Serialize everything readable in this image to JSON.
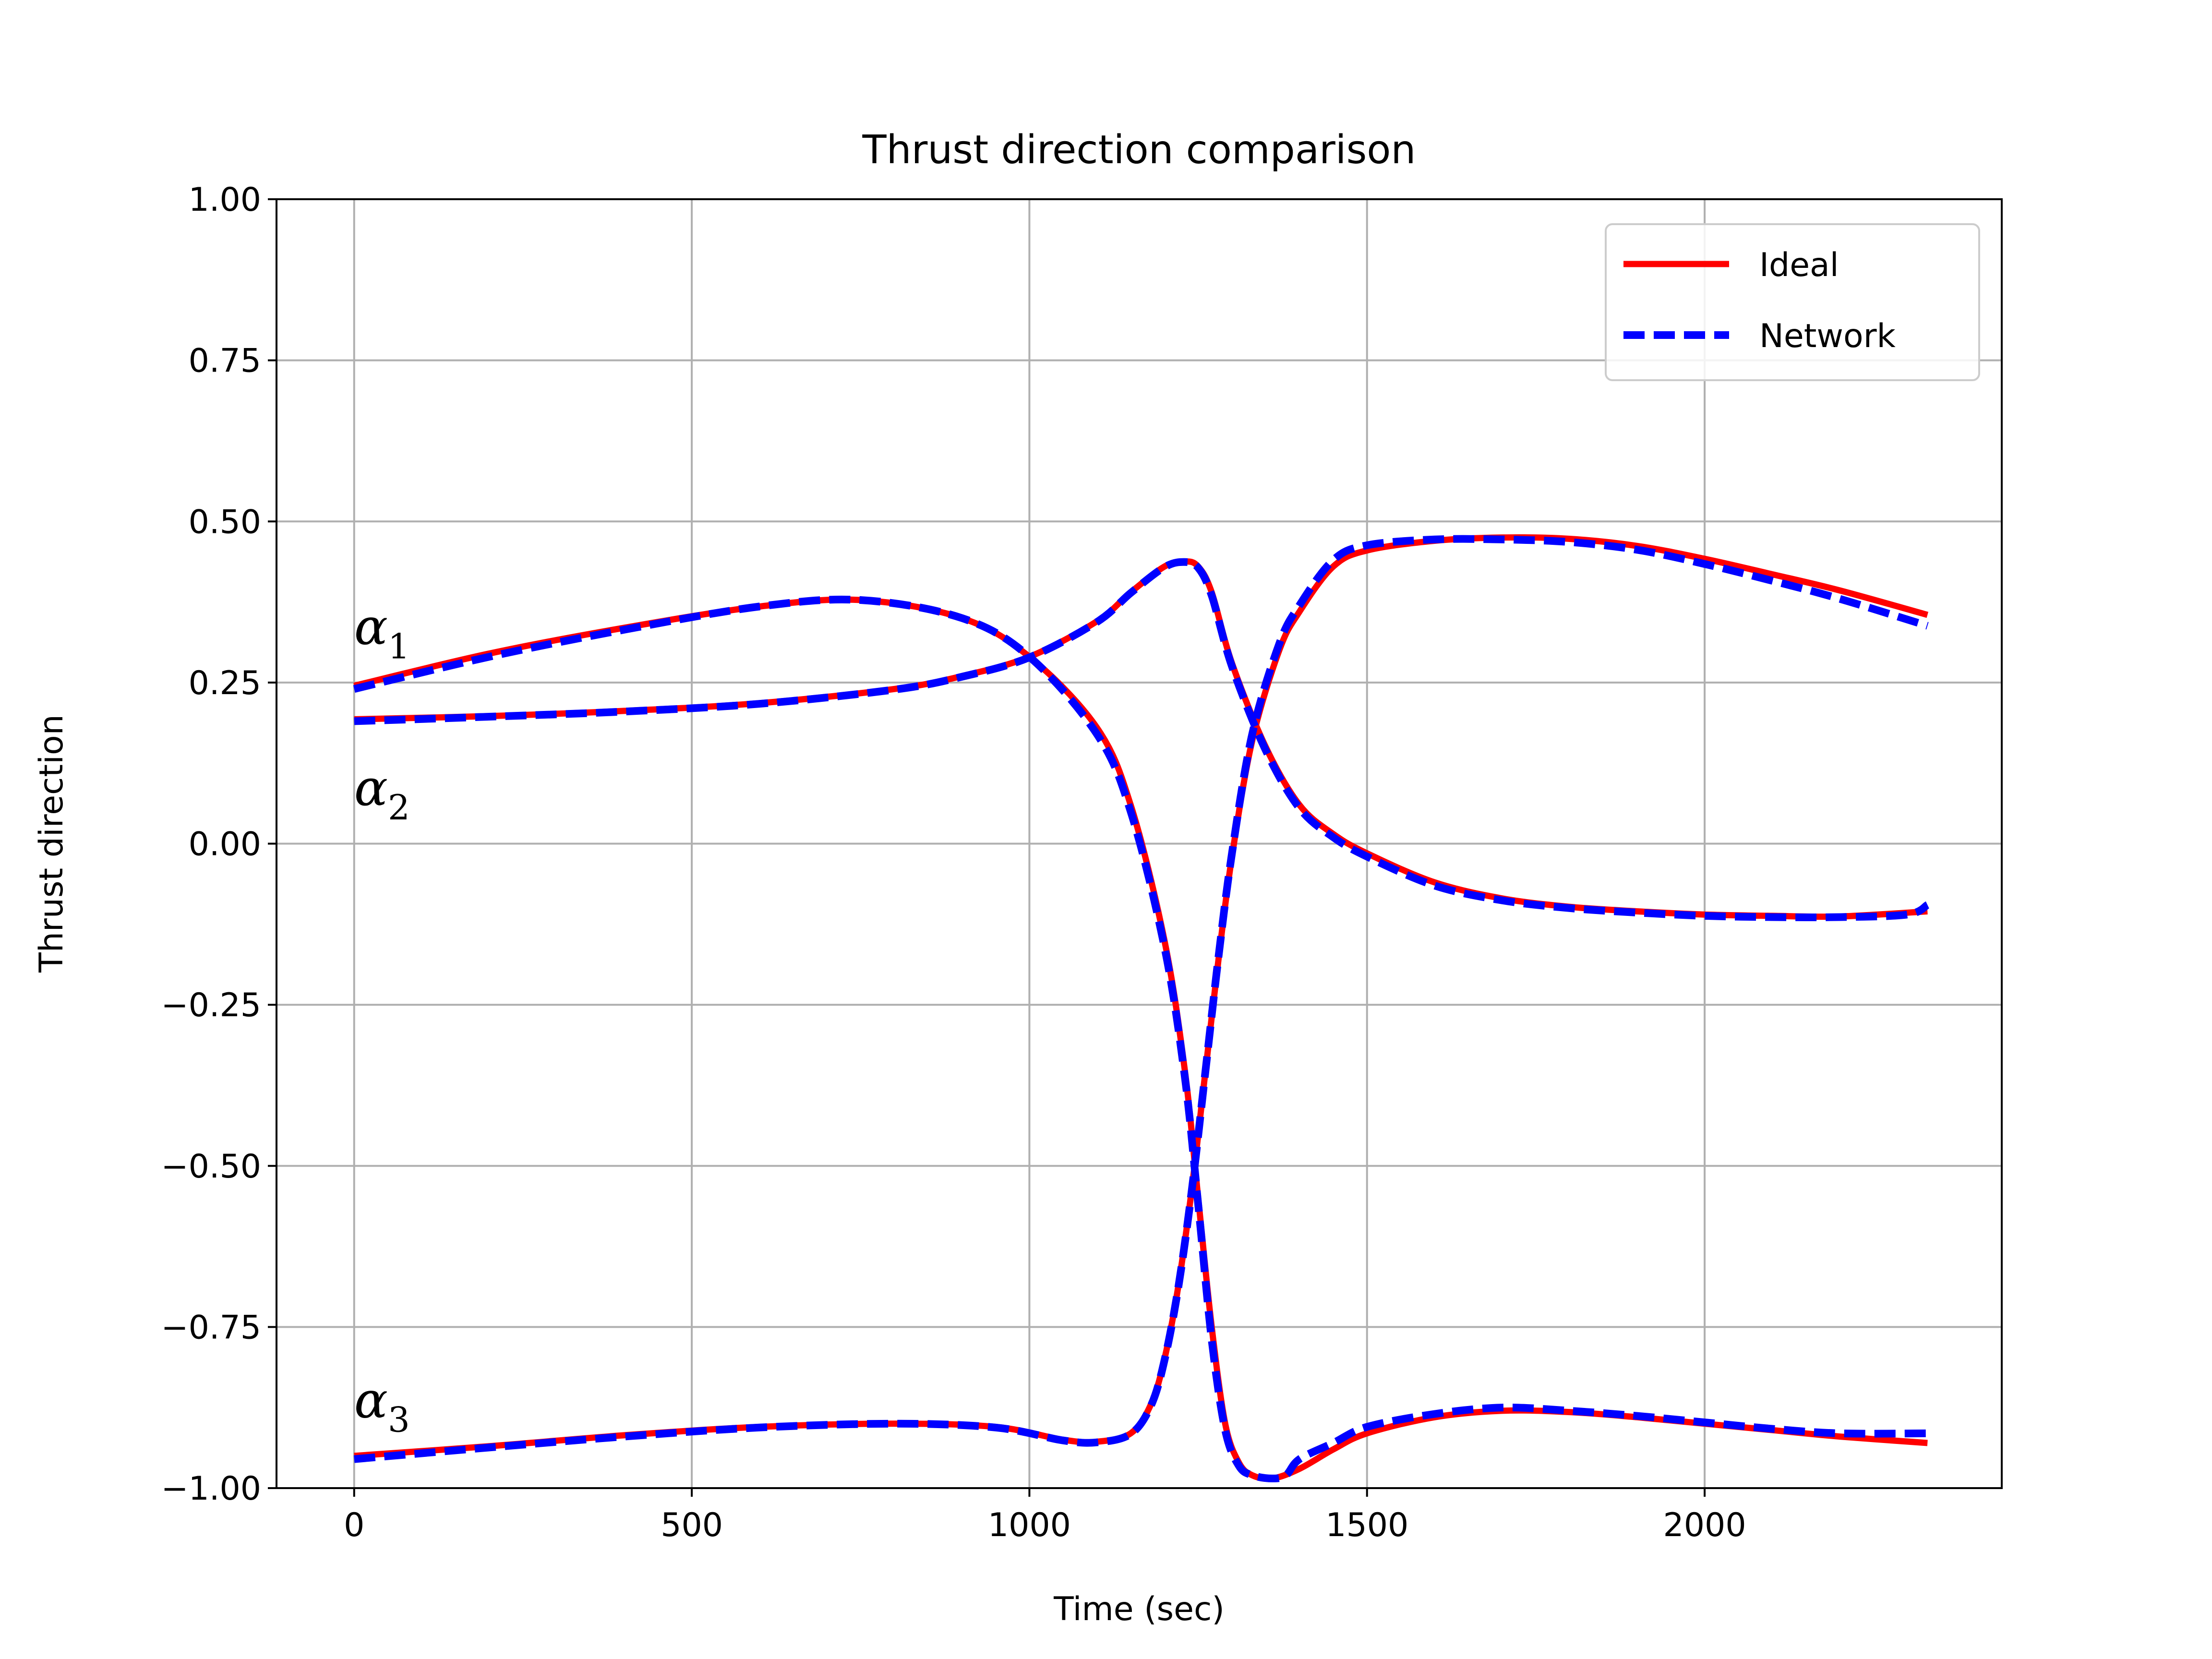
{
  "chart_data": {
    "type": "line",
    "title": "Thrust direction comparison",
    "xlabel": "Time (sec)",
    "ylabel": "Thrust direction",
    "xlim": [
      -115,
      2440
    ],
    "ylim": [
      -1.0,
      1.0
    ],
    "xticks": [
      0,
      500,
      1000,
      1500,
      2000
    ],
    "xtick_labels": [
      "0",
      "500",
      "1000",
      "1500",
      "2000"
    ],
    "yticks": [
      -1.0,
      -0.75,
      -0.5,
      -0.25,
      0.0,
      0.25,
      0.5,
      0.75,
      1.0
    ],
    "ytick_labels": [
      "−1.00",
      "−0.75",
      "−0.50",
      "−0.25",
      "0.00",
      "0.25",
      "0.50",
      "0.75",
      "1.00"
    ],
    "grid": true,
    "legend_position": "top-right",
    "legend": [
      {
        "label": "Ideal",
        "color": "#ff0000",
        "style": "solid"
      },
      {
        "label": "Network",
        "color": "#0000ff",
        "style": "dashed"
      }
    ],
    "annotations": [
      {
        "symbol": "α",
        "subscript": "1",
        "x": 0,
        "y": 0.31
      },
      {
        "symbol": "α",
        "subscript": "2",
        "x": 0,
        "y": 0.06
      },
      {
        "symbol": "α",
        "subscript": "3",
        "x": 0,
        "y": -0.89
      }
    ],
    "series": [
      {
        "curve": "alpha1",
        "line": "Ideal",
        "color": "#ff0000",
        "style": "solid",
        "x": [
          0,
          200,
          400,
          600,
          750,
          900,
          1000,
          1100,
          1150,
          1200,
          1230,
          1250,
          1270,
          1290,
          1310,
          1330,
          1360,
          1400,
          1450,
          1500,
          1600,
          1700,
          1800,
          1900,
          2000,
          2100,
          2200,
          2330
        ],
        "y": [
          0.245,
          0.295,
          0.335,
          0.368,
          0.378,
          0.35,
          0.29,
          0.18,
          0.06,
          -0.15,
          -0.35,
          -0.55,
          -0.75,
          -0.9,
          -0.96,
          -0.98,
          -0.985,
          -0.97,
          -0.94,
          -0.915,
          -0.89,
          -0.88,
          -0.882,
          -0.89,
          -0.9,
          -0.91,
          -0.92,
          -0.93
        ]
      },
      {
        "curve": "alpha1",
        "line": "Network",
        "color": "#0000ff",
        "style": "dashed",
        "x": [
          0,
          200,
          400,
          600,
          750,
          900,
          1000,
          1100,
          1150,
          1200,
          1230,
          1250,
          1270,
          1290,
          1310,
          1330,
          1360,
          1380,
          1400,
          1450,
          1500,
          1600,
          1700,
          1800,
          1900,
          2000,
          2100,
          2200,
          2330
        ],
        "y": [
          0.24,
          0.29,
          0.332,
          0.368,
          0.378,
          0.35,
          0.29,
          0.17,
          0.05,
          -0.16,
          -0.36,
          -0.56,
          -0.77,
          -0.91,
          -0.965,
          -0.98,
          -0.985,
          -0.98,
          -0.955,
          -0.93,
          -0.905,
          -0.885,
          -0.875,
          -0.88,
          -0.888,
          -0.898,
          -0.908,
          -0.915,
          -0.915
        ]
      },
      {
        "curve": "alpha2",
        "line": "Ideal",
        "color": "#ff0000",
        "style": "solid",
        "x": [
          0,
          200,
          400,
          600,
          800,
          900,
          1000,
          1100,
          1150,
          1200,
          1230,
          1250,
          1270,
          1300,
          1350,
          1400,
          1450,
          1500,
          1600,
          1700,
          1800,
          1900,
          2000,
          2100,
          2200,
          2330
        ],
        "y": [
          0.193,
          0.198,
          0.206,
          0.218,
          0.24,
          0.26,
          0.29,
          0.345,
          0.39,
          0.43,
          0.438,
          0.43,
          0.39,
          0.28,
          0.15,
          0.06,
          0.015,
          -0.015,
          -0.06,
          -0.085,
          -0.098,
          -0.105,
          -0.11,
          -0.112,
          -0.113,
          -0.105
        ]
      },
      {
        "curve": "alpha2",
        "line": "Network",
        "color": "#0000ff",
        "style": "dashed",
        "x": [
          0,
          200,
          400,
          600,
          800,
          900,
          1000,
          1100,
          1150,
          1200,
          1230,
          1250,
          1270,
          1300,
          1350,
          1400,
          1450,
          1500,
          1600,
          1700,
          1800,
          1900,
          2000,
          2100,
          2200,
          2300,
          2330
        ],
        "y": [
          0.19,
          0.197,
          0.205,
          0.217,
          0.239,
          0.259,
          0.289,
          0.344,
          0.389,
          0.429,
          0.437,
          0.428,
          0.385,
          0.275,
          0.145,
          0.055,
          0.01,
          -0.02,
          -0.065,
          -0.088,
          -0.1,
          -0.107,
          -0.112,
          -0.114,
          -0.114,
          -0.11,
          -0.095
        ]
      },
      {
        "curve": "alpha3",
        "line": "Ideal",
        "color": "#ff0000",
        "style": "solid",
        "x": [
          0,
          200,
          400,
          600,
          800,
          950,
          1050,
          1100,
          1150,
          1180,
          1200,
          1220,
          1240,
          1260,
          1280,
          1300,
          1330,
          1370,
          1400,
          1450,
          1500,
          1600,
          1700,
          1800,
          1900,
          2000,
          2100,
          2200,
          2330
        ],
        "y": [
          -0.95,
          -0.935,
          -0.918,
          -0.905,
          -0.9,
          -0.905,
          -0.925,
          -0.928,
          -0.915,
          -0.87,
          -0.8,
          -0.69,
          -0.54,
          -0.36,
          -0.18,
          -0.02,
          0.16,
          0.3,
          0.36,
          0.43,
          0.455,
          0.47,
          0.475,
          0.473,
          0.462,
          0.442,
          0.418,
          0.393,
          0.355
        ]
      },
      {
        "curve": "alpha3",
        "line": "Network",
        "color": "#0000ff",
        "style": "dashed",
        "x": [
          0,
          200,
          400,
          600,
          800,
          950,
          1050,
          1100,
          1150,
          1180,
          1200,
          1220,
          1240,
          1260,
          1280,
          1300,
          1330,
          1370,
          1400,
          1450,
          1500,
          1600,
          1700,
          1800,
          1900,
          2000,
          2100,
          2200,
          2330
        ],
        "y": [
          -0.955,
          -0.937,
          -0.92,
          -0.906,
          -0.9,
          -0.906,
          -0.926,
          -0.929,
          -0.916,
          -0.872,
          -0.802,
          -0.692,
          -0.542,
          -0.36,
          -0.176,
          -0.015,
          0.17,
          0.31,
          0.37,
          0.44,
          0.463,
          0.472,
          0.472,
          0.468,
          0.456,
          0.434,
          0.408,
          0.38,
          0.338
        ]
      }
    ]
  }
}
